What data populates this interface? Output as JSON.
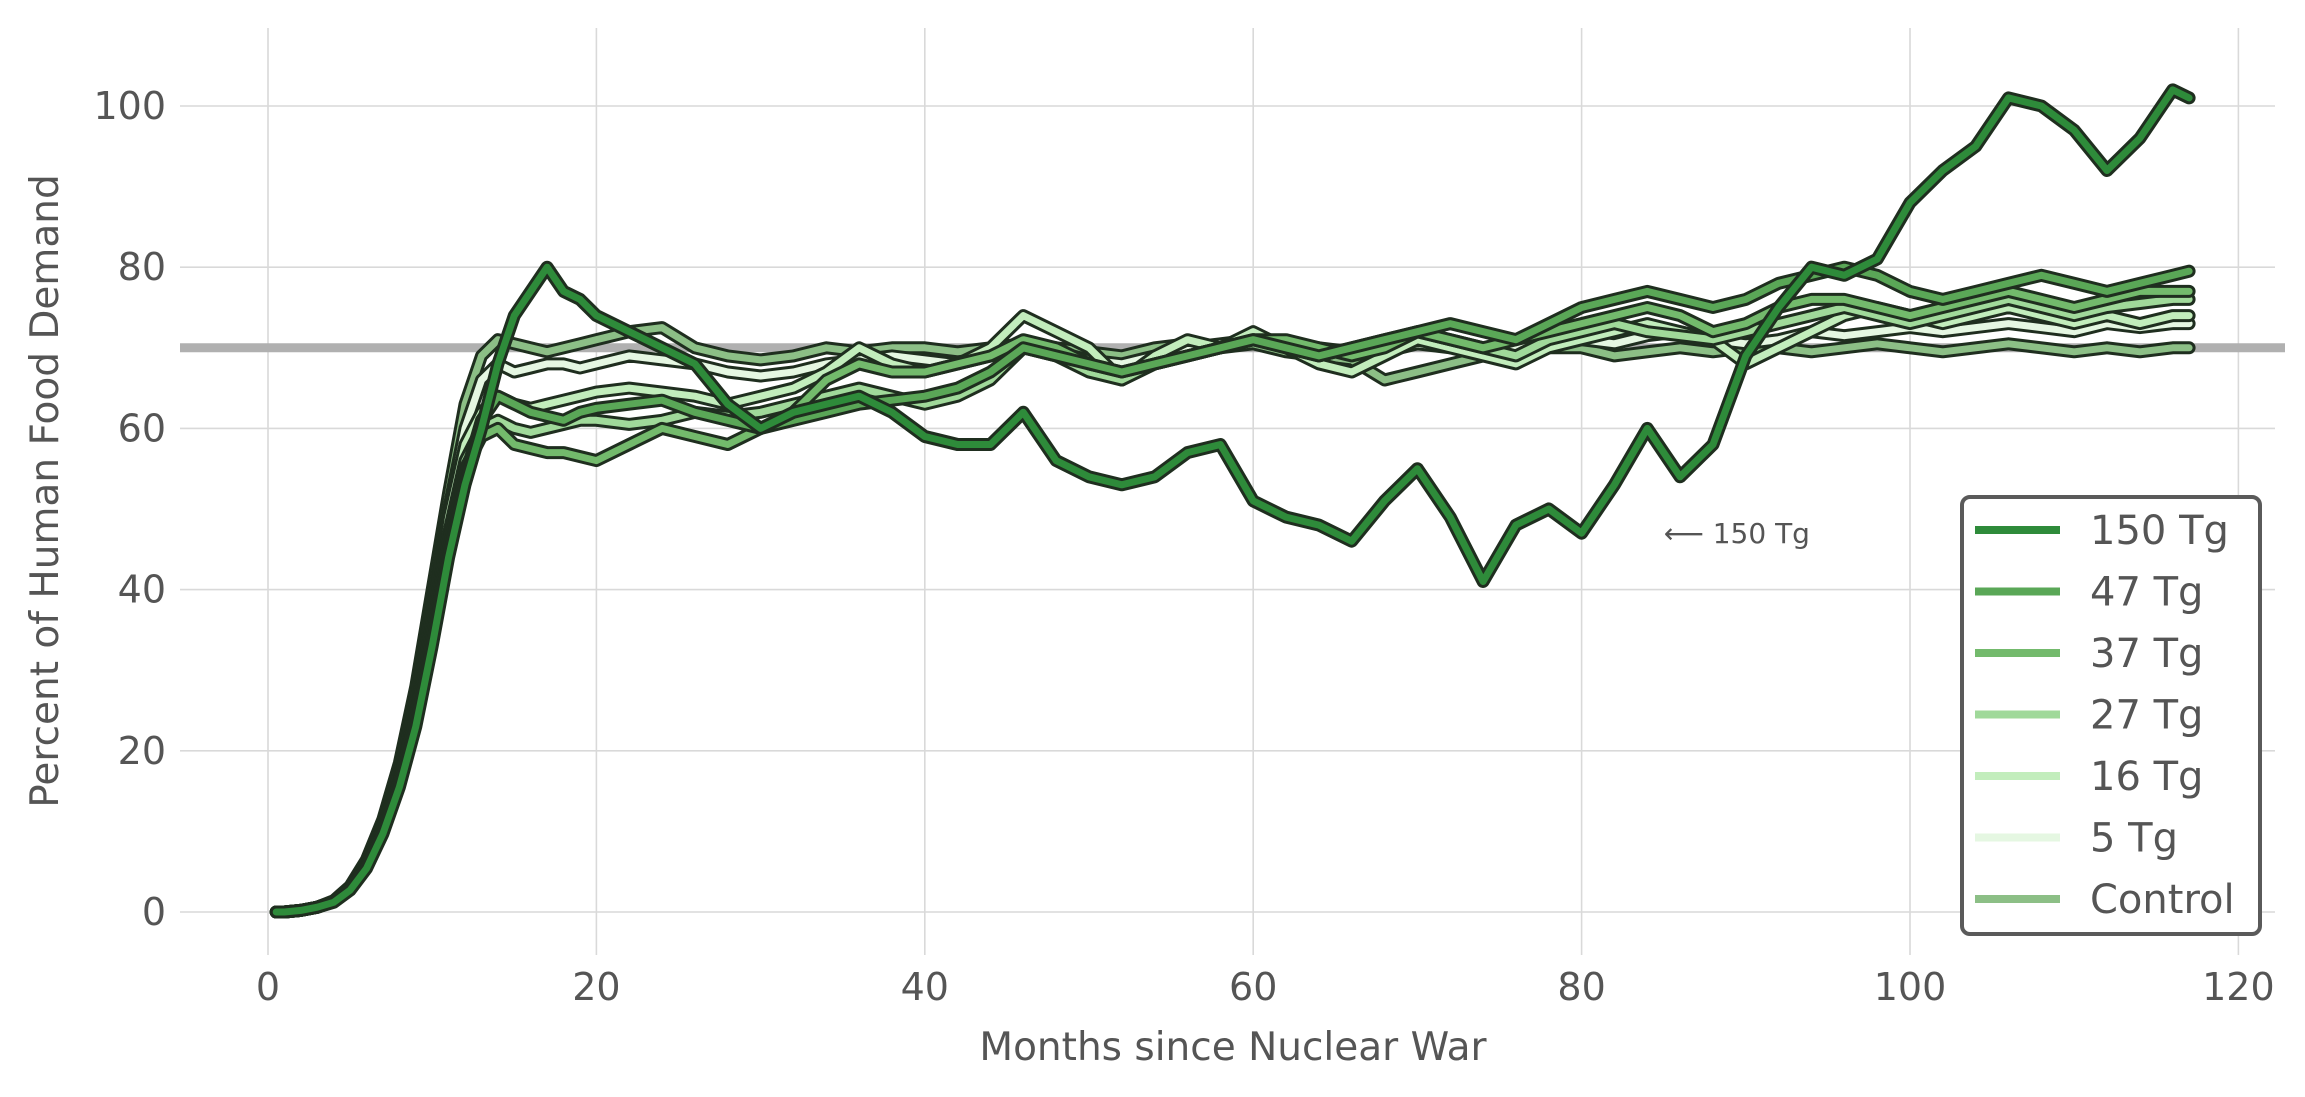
{
  "chart_data": {
    "type": "line",
    "title": "",
    "xlabel": "Months since Nuclear War",
    "ylabel": "Percent of Human Food Demand",
    "xlim": [
      -4,
      122
    ],
    "ylim": [
      -5,
      110
    ],
    "xticks": [
      0,
      20,
      40,
      60,
      80,
      100,
      120
    ],
    "yticks": [
      0,
      20,
      40,
      60,
      80,
      100
    ],
    "grid": true,
    "legend_position": "lower-right",
    "reference_line": {
      "y": 70,
      "color": "#b0b0b0"
    },
    "annotation": {
      "text": "⟵ 150 Tg",
      "x": 85,
      "y": 47
    },
    "x": [
      0.5,
      1,
      2,
      3,
      4,
      5,
      6,
      7,
      8,
      9,
      10,
      11,
      12,
      13,
      14,
      15,
      16,
      17,
      18,
      19,
      20,
      22,
      24,
      26,
      28,
      30,
      32,
      34,
      36,
      38,
      40,
      42,
      44,
      46,
      48,
      50,
      52,
      54,
      56,
      58,
      60,
      62,
      64,
      66,
      68,
      70,
      72,
      74,
      76,
      78,
      80,
      82,
      84,
      86,
      88,
      90,
      92,
      94,
      96,
      98,
      100,
      102,
      104,
      106,
      108,
      110,
      112,
      114,
      116,
      117
    ],
    "series": [
      {
        "name": "Control",
        "color": "#8cbf86",
        "width": 10,
        "values": [
          0,
          0,
          0.2,
          0.6,
          1.4,
          3.2,
          6.5,
          11.5,
          18.5,
          28,
          40,
          52,
          63,
          69,
          71,
          70.5,
          70,
          69.5,
          70,
          70.5,
          71,
          72,
          72.5,
          70,
          69,
          68.5,
          69,
          70,
          69.5,
          70,
          70,
          69.5,
          70,
          70.5,
          70,
          69.5,
          69,
          70,
          70.5,
          70,
          70.5,
          69.5,
          69,
          68.5,
          66,
          67,
          68,
          69,
          69.5,
          70,
          70,
          69,
          69.5,
          70,
          69.5,
          70,
          70,
          69.5,
          70,
          70.5,
          70,
          69.5,
          70,
          70.5,
          70,
          69.5,
          70,
          69.5,
          70,
          70
        ]
      },
      {
        "name": "5 Tg",
        "color": "#e5f7e2",
        "width": 10,
        "values": [
          0,
          0,
          0.2,
          0.6,
          1.3,
          3,
          6.2,
          11,
          17.5,
          27,
          38,
          50,
          60,
          66,
          68,
          67,
          67.5,
          68,
          68,
          67.5,
          68,
          69,
          68.5,
          68,
          67,
          66.5,
          67,
          68,
          68.5,
          69,
          68.5,
          68,
          69,
          70,
          69.5,
          68.5,
          68,
          69,
          70,
          70.5,
          71,
          70.5,
          70,
          69.5,
          69.5,
          70.5,
          70,
          69.5,
          70,
          70.5,
          71,
          70.5,
          71.5,
          72,
          71,
          70.5,
          71,
          72,
          71.5,
          72,
          72.5,
          72,
          72.5,
          73,
          72.5,
          72,
          73,
          72.5,
          73,
          73
        ]
      },
      {
        "name": "16 Tg",
        "color": "#c2edbc",
        "width": 10,
        "values": [
          0,
          0,
          0.2,
          0.6,
          1.3,
          3,
          6,
          10.8,
          17,
          26,
          37,
          49,
          58,
          62,
          64,
          63,
          62.5,
          63,
          63.5,
          64,
          64.5,
          65,
          64.5,
          64,
          63,
          64,
          65,
          67,
          70,
          68,
          67,
          68,
          70,
          74,
          72,
          70,
          66,
          69,
          71,
          70,
          72,
          70,
          68,
          67,
          69,
          71,
          70,
          69,
          68,
          70,
          71,
          72,
          73,
          72,
          71,
          68,
          70,
          72,
          74,
          75,
          74,
          73,
          74,
          75,
          74,
          73,
          74,
          73,
          74,
          74
        ]
      },
      {
        "name": "27 Tg",
        "color": "#a0d99a",
        "width": 10,
        "values": [
          0,
          0,
          0.2,
          0.6,
          1.3,
          2.9,
          5.8,
          10.5,
          16.5,
          25,
          36,
          47,
          56,
          60,
          61,
          60,
          59.5,
          60,
          60.5,
          61,
          61,
          60.5,
          61,
          62,
          61.5,
          62,
          63,
          64,
          65,
          64,
          63,
          64,
          66,
          70,
          69,
          67,
          66,
          68,
          69,
          70,
          71,
          70,
          69,
          70,
          71,
          72,
          71,
          70,
          69,
          71,
          72,
          73,
          72,
          71.5,
          71,
          72,
          73,
          74,
          75,
          74,
          73,
          74,
          75,
          76,
          75,
          74,
          75,
          75.5,
          76,
          76
        ]
      },
      {
        "name": "37 Tg",
        "color": "#73ba6c",
        "width": 10,
        "values": [
          0,
          0,
          0.2,
          0.6,
          1.3,
          2.9,
          5.8,
          10.3,
          16.3,
          24.5,
          35,
          46,
          55,
          59,
          60,
          58,
          57.5,
          57,
          57,
          56.5,
          56,
          58,
          60,
          59,
          58,
          60,
          62,
          66,
          68,
          67,
          67,
          68,
          69,
          71,
          70,
          68,
          67,
          68,
          69,
          70,
          71,
          71,
          70,
          69,
          70,
          72,
          71,
          70,
          71,
          72,
          73,
          74,
          75,
          74,
          72,
          73,
          75,
          76,
          76,
          75,
          74,
          75,
          76,
          77,
          76,
          75,
          76,
          77,
          77,
          77
        ]
      },
      {
        "name": "47 Tg",
        "color": "#5aa757",
        "width": 10,
        "values": [
          0,
          0,
          0.2,
          0.6,
          1.3,
          2.8,
          5.6,
          10,
          16,
          24,
          34,
          45,
          54,
          61,
          64,
          63,
          62,
          61.5,
          61,
          62,
          62.5,
          63,
          63.5,
          62,
          61,
          60,
          61,
          62,
          63,
          63.5,
          64,
          65,
          67,
          70,
          69,
          68,
          67,
          68,
          69,
          70,
          71,
          70,
          69,
          70,
          71,
          72,
          73,
          72,
          71,
          73,
          75,
          76,
          77,
          76,
          75,
          76,
          78,
          79,
          80,
          79,
          77,
          76,
          77,
          78,
          79,
          78,
          77,
          78,
          79,
          79.5
        ]
      },
      {
        "name": "150 Tg",
        "color": "#2e8b3a",
        "width": 10,
        "values": [
          0,
          0,
          0.2,
          0.6,
          1.2,
          2.7,
          5.4,
          9.7,
          15.5,
          23,
          33,
          44,
          53,
          60,
          68,
          74,
          77,
          80,
          77,
          76,
          74,
          72,
          70,
          68,
          63,
          60,
          62,
          63,
          64,
          62,
          59,
          58,
          58,
          62,
          56,
          54,
          53,
          54,
          57,
          58,
          51,
          49,
          48,
          46,
          51,
          55,
          49,
          41,
          48,
          50,
          47,
          53,
          60,
          54,
          58,
          69,
          75,
          80,
          79,
          81,
          88,
          92,
          95,
          101,
          100,
          97,
          92,
          96,
          102,
          101
        ]
      }
    ]
  },
  "legend": {
    "items": [
      {
        "label": "150 Tg",
        "color": "#2e8b3a"
      },
      {
        "label": "47 Tg",
        "color": "#5aa757"
      },
      {
        "label": "37 Tg",
        "color": "#73ba6c"
      },
      {
        "label": "27 Tg",
        "color": "#a0d99a"
      },
      {
        "label": "16 Tg",
        "color": "#c2edbc"
      },
      {
        "label": "5 Tg",
        "color": "#e5f7e2"
      },
      {
        "label": "Control",
        "color": "#8cbf86"
      }
    ]
  }
}
